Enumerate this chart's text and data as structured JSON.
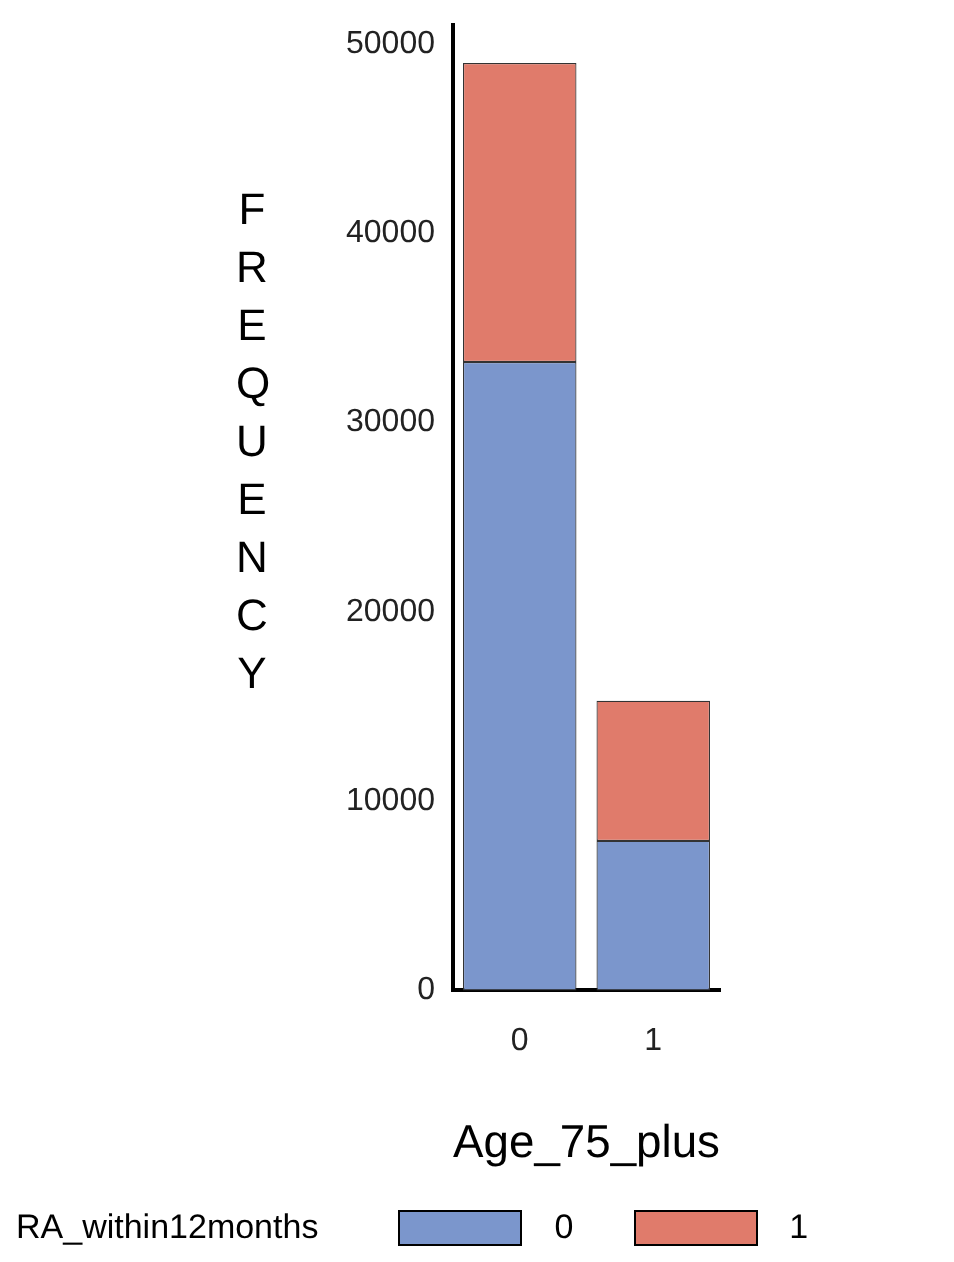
{
  "chart_data": {
    "type": "bar",
    "stacked": true,
    "xlabel": "Age_75_plus",
    "ylabel": "FREQUENCY",
    "legend_title": "RA_within12months",
    "legend": "bottom",
    "grid": false,
    "categories": [
      "0",
      "1"
    ],
    "series": [
      {
        "name": "0",
        "color": "#7b96cc",
        "values": [
          33200,
          7900
        ]
      },
      {
        "name": "1",
        "color": "#e07b6b",
        "values": [
          15800,
          7400
        ]
      }
    ],
    "ylim": [
      0,
      51000
    ],
    "yticks": [
      0,
      10000,
      20000,
      30000,
      40000,
      50000
    ]
  }
}
